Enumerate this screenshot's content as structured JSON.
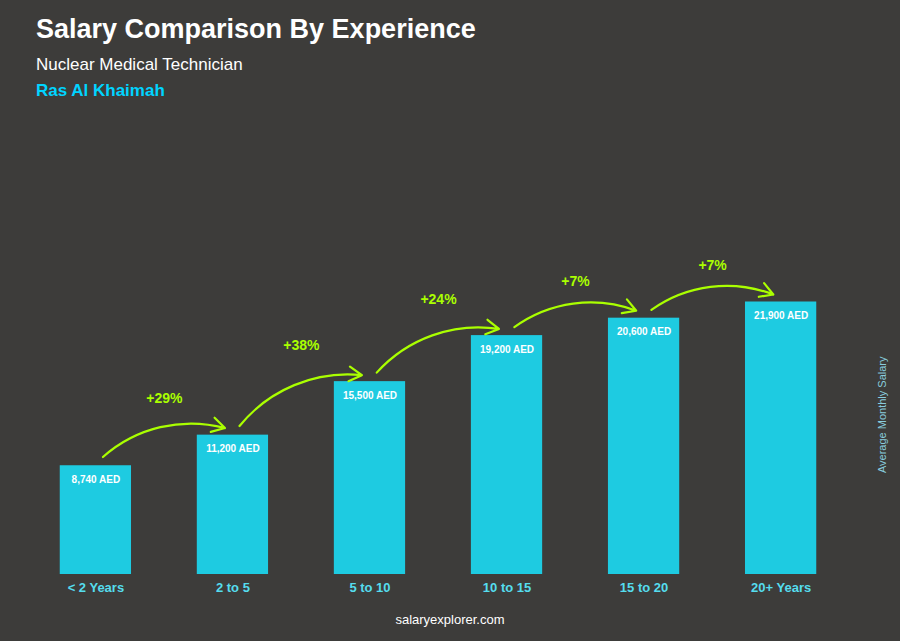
{
  "chart_data": {
    "type": "bar",
    "title": "Salary Comparison By Experience",
    "subtitle": [
      "Nuclear Medical Technician",
      "Ras Al Khaimah"
    ],
    "caption": "salaryexplorer.com",
    "ylabel": "Average Monthly Salary",
    "categories": [
      "< 2 Years",
      "2 to 5",
      "5 to 10",
      "10 to 15",
      "15 to 20",
      "20+ Years"
    ],
    "values": [
      8740,
      11200,
      15500,
      19200,
      20600,
      21900
    ],
    "value_labels": [
      "8,740 AED",
      "11,200 AED",
      "15,500 AED",
      "19,200 AED",
      "20,600 AED",
      "21,900 AED"
    ],
    "data_labels": true,
    "color": "#1ECBE1",
    "ylim": [
      0,
      35040
    ],
    "tick_labels": "x",
    "grid": false,
    "annotations": [
      {
        "from": "< 2 Years",
        "to": "2 to 5",
        "text": "+29%",
        "color": "#AAFF00"
      },
      {
        "from": "2 to 5",
        "to": "5 to 10",
        "text": "+38%",
        "color": "#AAFF00"
      },
      {
        "from": "5 to 10",
        "to": "10 to 15",
        "text": "+24%",
        "color": "#AAFF00"
      },
      {
        "from": "10 to 15",
        "to": "15 to 20",
        "text": "+7%",
        "color": "#AAFF00"
      },
      {
        "from": "15 to 20",
        "to": "20+ Years",
        "text": "+7%",
        "color": "#AAFF00"
      }
    ]
  }
}
